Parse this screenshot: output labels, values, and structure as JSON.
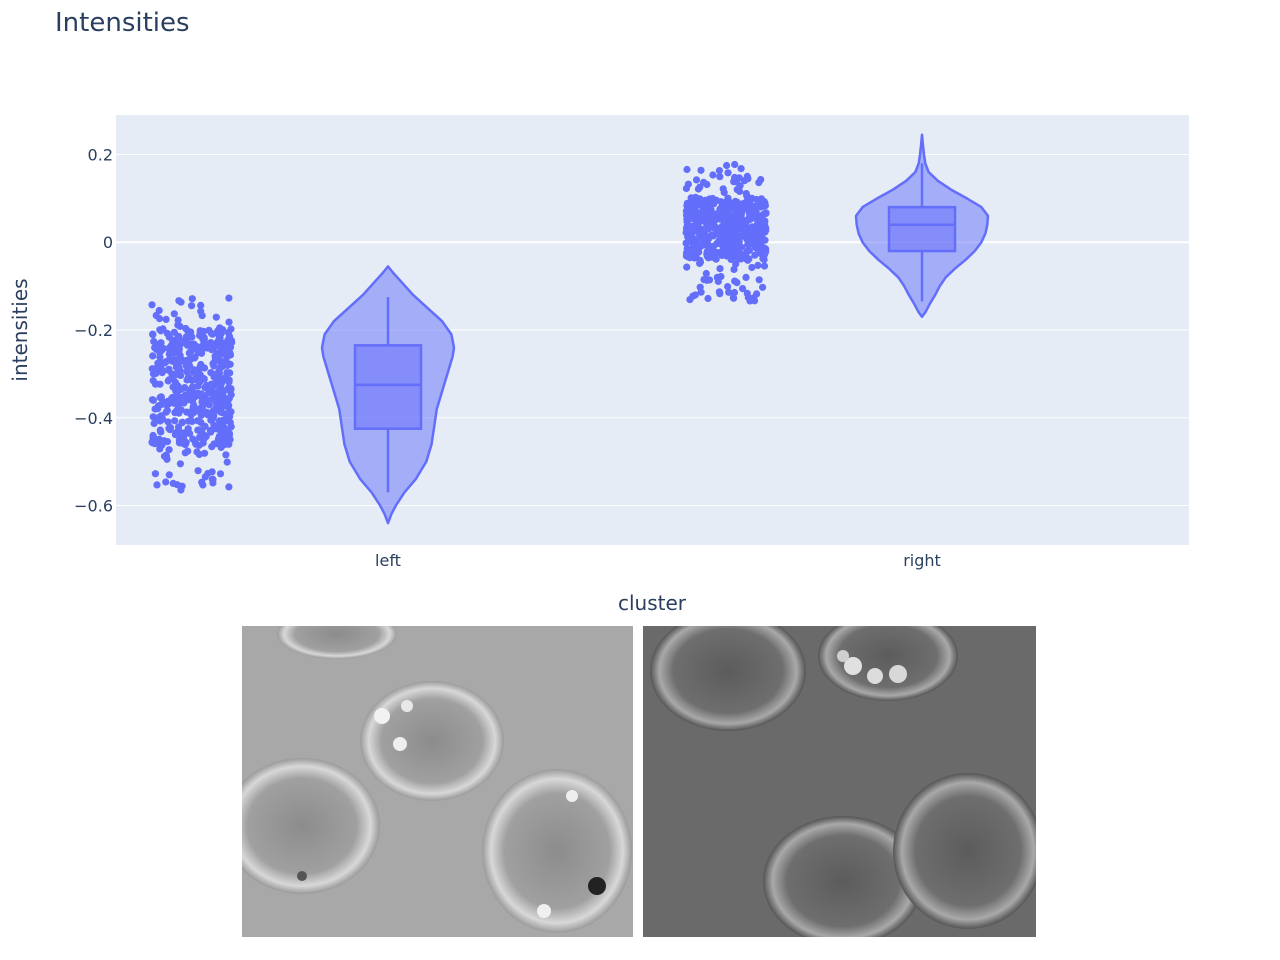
{
  "title": "Intensities",
  "colors": {
    "marker": "#636efa",
    "violin_fill": "rgba(99,110,250,0.5)",
    "plot_bg": "#e5ecf6",
    "grid": "#ffffff",
    "text": "#2a3f5f"
  },
  "chart_data": {
    "type": "violin",
    "title": "Intensities",
    "xlabel": "cluster",
    "ylabel": "intensities",
    "categories": [
      "left",
      "right"
    ],
    "ylim": [
      -0.69,
      0.29
    ],
    "yticks": [
      0.2,
      0,
      -0.2,
      -0.4,
      -0.6
    ],
    "ytick_labels": [
      "0.2",
      "0",
      "−0.2",
      "−0.4",
      "−0.6"
    ],
    "grid": true,
    "points": "all",
    "box_visible": true,
    "groups": [
      {
        "category": "left",
        "min": -0.57,
        "q1": -0.425,
        "median": -0.325,
        "q3": -0.235,
        "max": -0.125,
        "kde_min": -0.64,
        "kde_max": -0.055,
        "density": [
          [
            -0.64,
            0.0
          ],
          [
            -0.62,
            0.05
          ],
          [
            -0.6,
            0.12
          ],
          [
            -0.57,
            0.25
          ],
          [
            -0.54,
            0.42
          ],
          [
            -0.5,
            0.58
          ],
          [
            -0.46,
            0.66
          ],
          [
            -0.42,
            0.7
          ],
          [
            -0.38,
            0.74
          ],
          [
            -0.34,
            0.82
          ],
          [
            -0.3,
            0.9
          ],
          [
            -0.26,
            0.98
          ],
          [
            -0.24,
            1.0
          ],
          [
            -0.21,
            0.96
          ],
          [
            -0.18,
            0.82
          ],
          [
            -0.15,
            0.6
          ],
          [
            -0.12,
            0.38
          ],
          [
            -0.09,
            0.2
          ],
          [
            -0.07,
            0.08
          ],
          [
            -0.055,
            0.0
          ]
        ],
        "jitter_points": 500,
        "seed": 11
      },
      {
        "category": "right",
        "min": -0.135,
        "q1": -0.02,
        "median": 0.04,
        "q3": 0.08,
        "max": 0.18,
        "kde_min": -0.17,
        "kde_max": 0.245,
        "density": [
          [
            -0.17,
            0.0
          ],
          [
            -0.16,
            0.05
          ],
          [
            -0.14,
            0.12
          ],
          [
            -0.12,
            0.2
          ],
          [
            -0.1,
            0.27
          ],
          [
            -0.08,
            0.36
          ],
          [
            -0.06,
            0.5
          ],
          [
            -0.04,
            0.66
          ],
          [
            -0.02,
            0.8
          ],
          [
            0.0,
            0.9
          ],
          [
            0.02,
            0.96
          ],
          [
            0.04,
            0.99
          ],
          [
            0.06,
            1.0
          ],
          [
            0.08,
            0.9
          ],
          [
            0.1,
            0.68
          ],
          [
            0.12,
            0.44
          ],
          [
            0.14,
            0.24
          ],
          [
            0.16,
            0.1
          ],
          [
            0.18,
            0.05
          ],
          [
            0.2,
            0.03
          ],
          [
            0.22,
            0.015
          ],
          [
            0.245,
            0.0
          ]
        ],
        "jitter_points": 500,
        "seed": 29
      }
    ]
  },
  "images": [
    {
      "name": "left-cluster-micrograph"
    },
    {
      "name": "right-cluster-micrograph"
    }
  ]
}
